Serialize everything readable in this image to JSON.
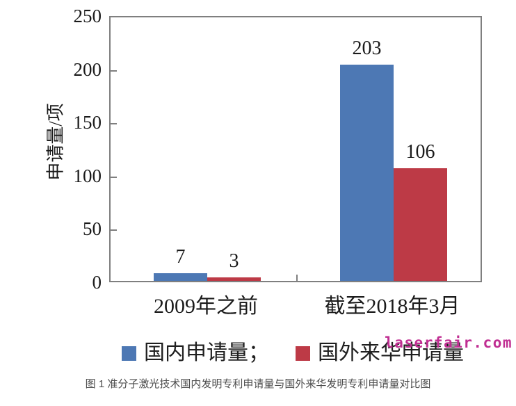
{
  "chart_data": {
    "type": "bar",
    "categories": [
      "2009年之前",
      "截至2018年3月"
    ],
    "series": [
      {
        "name": "国内申请量",
        "color": "#4d78b4",
        "values": [
          7,
          203
        ]
      },
      {
        "name": "国外来华申请量",
        "color": "#bd3a46",
        "values": [
          3,
          106
        ]
      }
    ],
    "legend_labels": [
      "国内申请量；",
      "国外来华申请量"
    ],
    "legend_position": "bottom",
    "ylabel": "申请量/项",
    "xlabel": "",
    "title": "",
    "yticks": [
      0,
      50,
      100,
      150,
      200,
      250
    ],
    "ylim": [
      0,
      250
    ],
    "grid": false,
    "data_labels": true
  },
  "watermark": {
    "text": "laserfair.com",
    "color": "#c02e92"
  },
  "caption": "图 1 准分子激光技术国内发明专利申请量与国外来华发明专利申请量对比图"
}
